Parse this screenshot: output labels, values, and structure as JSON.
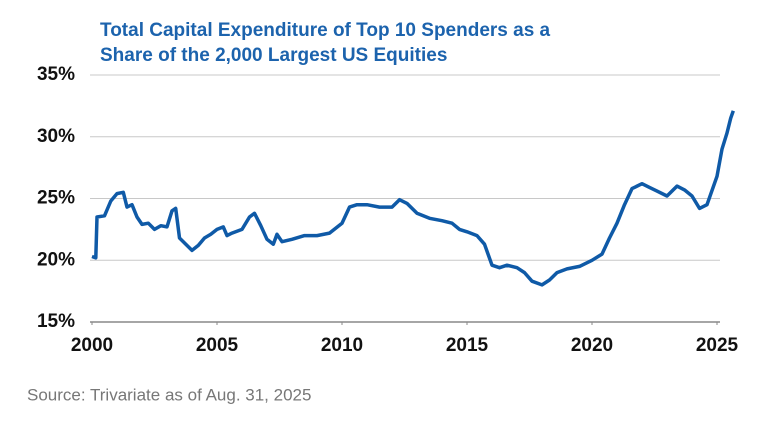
{
  "chart_data": {
    "type": "line",
    "title": [
      "Total Capital Expenditure of Top 10 Spenders as a",
      "Share of the 2,000 Largest US Equities"
    ],
    "source": "Source: Trivariate as of Aug. 31, 2025",
    "x": [
      2000.0,
      2000.15,
      2000.2,
      2000.5,
      2000.75,
      2001.0,
      2001.25,
      2001.4,
      2001.6,
      2001.8,
      2002.0,
      2002.25,
      2002.5,
      2002.75,
      2003.0,
      2003.2,
      2003.35,
      2003.5,
      2003.75,
      2004.0,
      2004.25,
      2004.5,
      2004.75,
      2005.0,
      2005.25,
      2005.4,
      2005.6,
      2006.0,
      2006.3,
      2006.5,
      2006.75,
      2007.0,
      2007.25,
      2007.4,
      2007.6,
      2008.0,
      2008.5,
      2009.0,
      2009.5,
      2010.0,
      2010.3,
      2010.6,
      2011.0,
      2011.5,
      2012.0,
      2012.3,
      2012.6,
      2013.0,
      2013.5,
      2014.0,
      2014.4,
      2014.7,
      2015.0,
      2015.4,
      2015.7,
      2016.0,
      2016.3,
      2016.6,
      2017.0,
      2017.3,
      2017.6,
      2018.0,
      2018.3,
      2018.6,
      2019.0,
      2019.5,
      2020.0,
      2020.4,
      2020.7,
      2021.0,
      2021.3,
      2021.6,
      2022.0,
      2022.3,
      2022.6,
      2023.0,
      2023.4,
      2023.7,
      2024.0,
      2024.3,
      2024.6,
      2025.0,
      2025.2,
      2025.4,
      2025.55,
      2025.65
    ],
    "series": [
      {
        "color": "#0f5aa7",
        "values": [
          20.3,
          20.2,
          23.5,
          23.6,
          24.8,
          25.4,
          25.5,
          24.3,
          24.5,
          23.5,
          22.9,
          23.0,
          22.5,
          22.8,
          22.7,
          24.0,
          24.2,
          21.8,
          21.3,
          20.8,
          21.2,
          21.8,
          22.1,
          22.5,
          22.7,
          22.0,
          22.2,
          22.5,
          23.5,
          23.8,
          22.8,
          21.7,
          21.3,
          22.1,
          21.5,
          21.7,
          22.0,
          22.0,
          22.2,
          23.0,
          24.3,
          24.5,
          24.5,
          24.3,
          24.3,
          24.9,
          24.6,
          23.8,
          23.4,
          23.2,
          23.0,
          22.5,
          22.3,
          22.0,
          21.3,
          19.6,
          19.4,
          19.6,
          19.4,
          19.0,
          18.3,
          18.0,
          18.4,
          19.0,
          19.3,
          19.5,
          20.0,
          20.5,
          21.8,
          23.0,
          24.5,
          25.8,
          26.2,
          25.9,
          25.6,
          25.2,
          26.0,
          25.7,
          25.2,
          24.2,
          24.5,
          26.8,
          29.0,
          30.3,
          31.5,
          32.1
        ]
      }
    ],
    "xlim": [
      2000,
      2025
    ],
    "xticks": [
      2000,
      2005,
      2010,
      2015,
      2020,
      2025
    ],
    "ylim": [
      15,
      35
    ],
    "yticks": [
      {
        "value": 15,
        "label": "15%"
      },
      {
        "value": 20,
        "label": "20%"
      },
      {
        "value": 25,
        "label": "25%"
      },
      {
        "value": 30,
        "label": "30%"
      },
      {
        "value": 35,
        "label": "35%"
      }
    ],
    "grid": true
  }
}
